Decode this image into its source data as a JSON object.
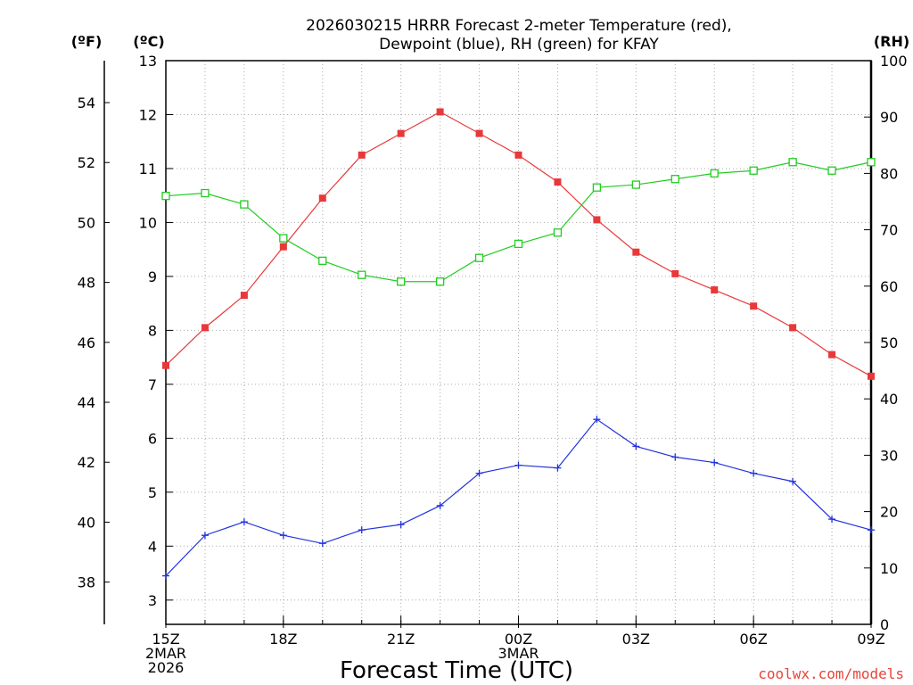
{
  "title_line1": "2026030215 HRRR Forecast 2-meter Temperature (red),",
  "title_line2": "Dewpoint (blue), RH (green) for KFAY",
  "unit_f": "(ºF)",
  "unit_c": "(ºC)",
  "unit_rh": "(RH)",
  "xlabel": "Forecast Time (UTC)",
  "credit": "coolwx.com/models",
  "colors": {
    "temperature": "#e8383a",
    "dewpoint": "#2233dd",
    "rh": "#22cc22",
    "grid": "#aaaaaa"
  },
  "chart_data": {
    "type": "line",
    "x_hours": [
      0,
      1,
      2,
      3,
      4,
      5,
      6,
      7,
      8,
      9,
      10,
      11,
      12,
      13,
      14,
      15,
      16,
      17,
      18
    ],
    "x_ticks": [
      {
        "hour": 0,
        "lines": [
          "15Z",
          "2MAR",
          "2026"
        ]
      },
      {
        "hour": 3,
        "lines": [
          "18Z"
        ]
      },
      {
        "hour": 6,
        "lines": [
          "21Z"
        ]
      },
      {
        "hour": 9,
        "lines": [
          "00Z",
          "3MAR"
        ]
      },
      {
        "hour": 12,
        "lines": [
          "03Z"
        ]
      },
      {
        "hour": 15,
        "lines": [
          "06Z"
        ]
      },
      {
        "hour": 18,
        "lines": [
          "09Z"
        ]
      }
    ],
    "left_c_axis": {
      "label": "(ºC)",
      "ylim": [
        2.55,
        13
      ],
      "ticks": [
        3,
        4,
        5,
        6,
        7,
        8,
        9,
        10,
        11,
        12,
        13
      ]
    },
    "left_f_axis": {
      "label": "(ºF)",
      "ticks": [
        38,
        40,
        42,
        44,
        46,
        48,
        50,
        52,
        54
      ]
    },
    "right_rh_axis": {
      "label": "(RH)",
      "ylim": [
        0,
        100
      ],
      "ticks": [
        0,
        10,
        20,
        30,
        40,
        50,
        60,
        70,
        80,
        90,
        100
      ]
    },
    "grid": true,
    "series": [
      {
        "name": "Temperature (red)",
        "axis": "c",
        "color": "#e8383a",
        "marker": "filled-square",
        "values": [
          7.35,
          8.05,
          8.65,
          9.55,
          10.45,
          11.25,
          11.65,
          12.05,
          11.65,
          11.25,
          10.75,
          10.05,
          9.45,
          9.05,
          8.75,
          8.45,
          8.05,
          7.55,
          7.15
        ]
      },
      {
        "name": "Dewpoint (blue)",
        "axis": "c",
        "color": "#2233dd",
        "marker": "plus",
        "values": [
          3.45,
          4.2,
          4.45,
          4.2,
          4.05,
          4.3,
          4.4,
          4.75,
          5.35,
          5.5,
          5.45,
          6.35,
          5.85,
          5.65,
          5.55,
          5.35,
          5.2,
          4.5,
          4.3
        ]
      },
      {
        "name": "RH (green)",
        "axis": "rh",
        "color": "#22cc22",
        "marker": "open-square",
        "values": [
          76,
          76.5,
          74.5,
          68.5,
          64.5,
          62,
          60.8,
          60.8,
          65,
          67.5,
          69.5,
          77.5,
          78,
          79,
          80,
          80.5,
          82,
          80.5,
          82
        ]
      }
    ]
  }
}
